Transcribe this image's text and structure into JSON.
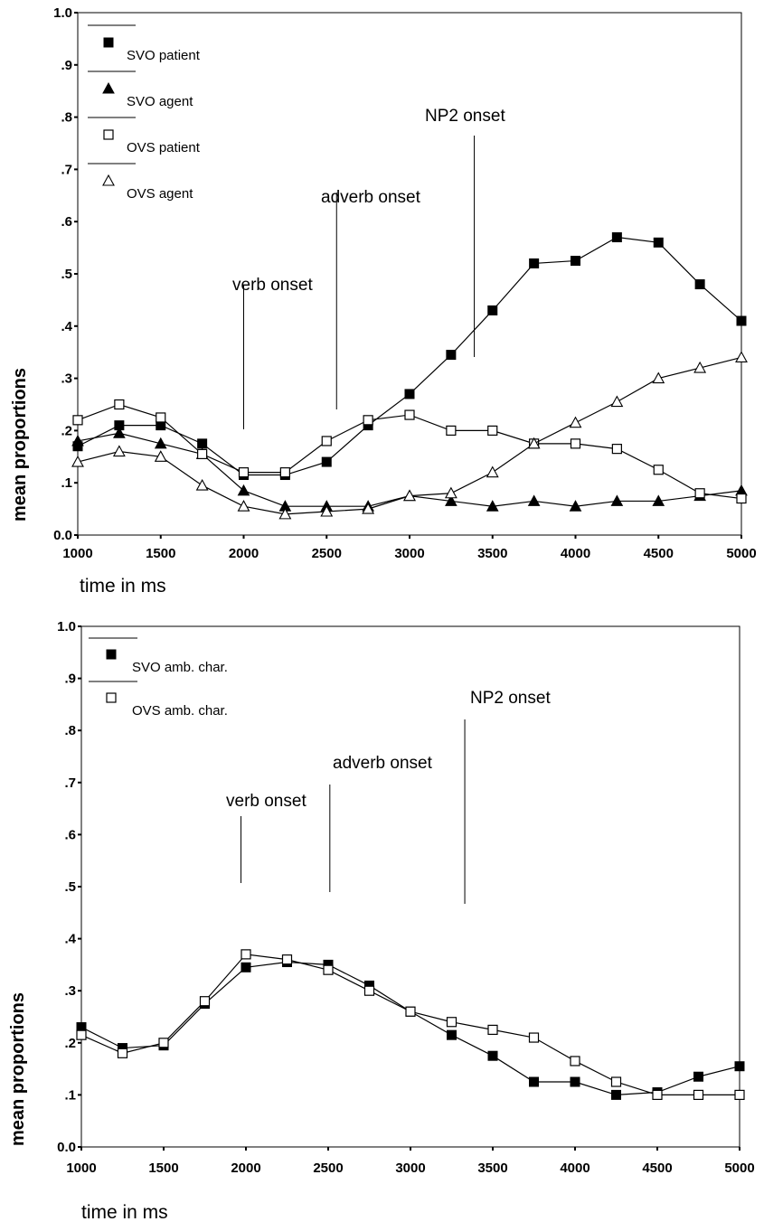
{
  "chart_data": [
    {
      "type": "line",
      "xlabel": "time in ms",
      "ylabel": "mean proportions",
      "xlim": [
        1000,
        5000
      ],
      "ylim": [
        0,
        1
      ],
      "x_ticks": [
        "1000",
        "1500",
        "2000",
        "2500",
        "3000",
        "3500",
        "4000",
        "4500",
        "5000"
      ],
      "y_ticks": [
        "0.0",
        ".1",
        ".2",
        ".3",
        ".4",
        ".5",
        ".6",
        ".7",
        ".8",
        ".9",
        "1.0"
      ],
      "legend_position": "top-left",
      "x": [
        1000,
        1250,
        1500,
        1750,
        2000,
        2250,
        2500,
        2750,
        3000,
        3250,
        3500,
        3750,
        4000,
        4250,
        4500,
        4750,
        5000
      ],
      "series": [
        {
          "name": "SVO patient",
          "marker": "filled-square",
          "values": [
            0.17,
            0.21,
            0.21,
            0.175,
            0.115,
            0.115,
            0.14,
            0.21,
            0.27,
            0.345,
            0.43,
            0.52,
            0.525,
            0.57,
            0.56,
            0.48,
            0.41
          ]
        },
        {
          "name": "SVO agent",
          "marker": "filled-triangle",
          "values": [
            0.18,
            0.195,
            0.175,
            0.155,
            0.085,
            0.055,
            0.055,
            0.055,
            0.075,
            0.065,
            0.055,
            0.065,
            0.055,
            0.065,
            0.065,
            0.075,
            0.085
          ]
        },
        {
          "name": "OVS patient",
          "marker": "open-square",
          "values": [
            0.22,
            0.25,
            0.225,
            0.155,
            0.12,
            0.12,
            0.18,
            0.22,
            0.23,
            0.2,
            0.2,
            0.175,
            0.175,
            0.165,
            0.125,
            0.08,
            0.07
          ]
        },
        {
          "name": "OVS agent",
          "marker": "open-triangle",
          "values": [
            0.14,
            0.16,
            0.15,
            0.095,
            0.055,
            0.04,
            0.045,
            0.05,
            0.075,
            0.08,
            0.12,
            0.175,
            0.215,
            0.255,
            0.3,
            0.32,
            0.34
          ]
        }
      ],
      "annotations": [
        {
          "text": "verb onset",
          "x": 2000
        },
        {
          "text": "adverb onset",
          "x": 2560
        },
        {
          "text": "NP2 onset",
          "x": 3390
        }
      ]
    },
    {
      "type": "line",
      "xlabel": "time in ms",
      "ylabel": "mean proportions",
      "xlim": [
        1000,
        5000
      ],
      "ylim": [
        0,
        1
      ],
      "x_ticks": [
        "1000",
        "1500",
        "2000",
        "2500",
        "3000",
        "3500",
        "4000",
        "4500",
        "5000"
      ],
      "y_ticks": [
        "0.0",
        ".1",
        ".2",
        ".3",
        ".4",
        ".5",
        ".6",
        ".7",
        ".8",
        ".9",
        "1.0"
      ],
      "legend_position": "top-left",
      "x": [
        1000,
        1250,
        1500,
        1750,
        2000,
        2250,
        2500,
        2750,
        3000,
        3250,
        3500,
        3750,
        4000,
        4250,
        4500,
        4750,
        5000
      ],
      "series": [
        {
          "name": "SVO amb. char.",
          "marker": "filled-square",
          "values": [
            0.23,
            0.19,
            0.195,
            0.275,
            0.345,
            0.355,
            0.35,
            0.31,
            0.26,
            0.215,
            0.175,
            0.125,
            0.125,
            0.1,
            0.105,
            0.135,
            0.155
          ]
        },
        {
          "name": "OVS amb. char.",
          "marker": "open-square",
          "values": [
            0.215,
            0.18,
            0.2,
            0.28,
            0.37,
            0.36,
            0.34,
            0.3,
            0.26,
            0.24,
            0.225,
            0.21,
            0.165,
            0.125,
            0.1,
            0.1,
            0.1
          ]
        }
      ],
      "annotations": [
        {
          "text": "verb onset",
          "x": 1970
        },
        {
          "text": "adverb onset",
          "x": 2510
        },
        {
          "text": "NP2 onset",
          "x": 3330
        }
      ]
    }
  ]
}
